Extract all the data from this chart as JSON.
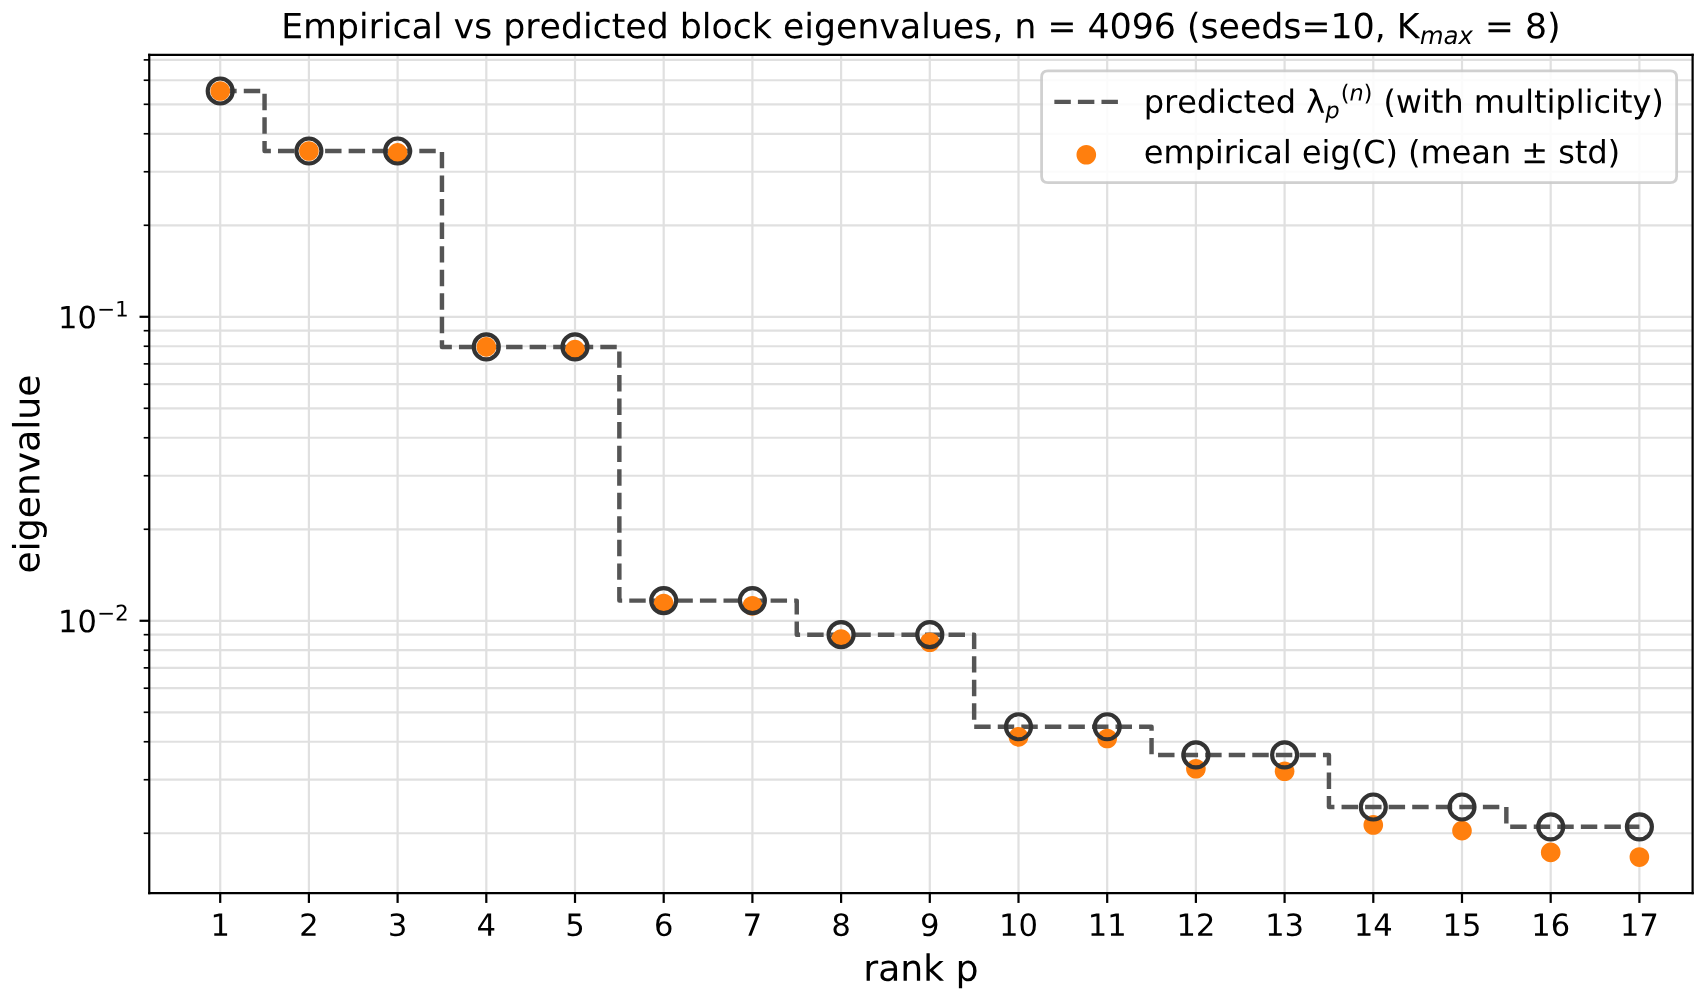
{
  "chart_data": {
    "type": "step",
    "title": "Empirical vs predicted block eigenvalues, n = 4096 (seeds=10, K$_{max}$ = 8)",
    "xlabel": "rank p",
    "ylabel": "eigenvalue",
    "x": [
      1,
      2,
      3,
      4,
      5,
      6,
      7,
      8,
      9,
      10,
      11,
      12,
      13,
      14,
      15,
      16,
      17
    ],
    "series": [
      {
        "name": "predicted λ$_{p}$$^{(n)}$ (with multiplicity)",
        "color": "#555555",
        "line_style": "dashed",
        "marker": "circle",
        "values": [
          0.553,
          0.351,
          0.351,
          0.0796,
          0.0796,
          0.01165,
          0.01165,
          0.009,
          0.009,
          0.00448,
          0.00448,
          0.00362,
          0.00362,
          0.00244,
          0.00244,
          0.0021,
          0.0021
        ]
      },
      {
        "name": "empirical eig(C) (mean ± std)",
        "type": "scatter",
        "color": "#ff7f0e",
        "marker": "circle",
        "values": [
          0.553,
          0.351,
          0.346,
          0.0796,
          0.078,
          0.0114,
          0.0112,
          0.0087,
          0.0085,
          0.00415,
          0.0041,
          0.00326,
          0.0032,
          0.00213,
          0.00204,
          0.00173,
          0.00167
        ]
      }
    ],
    "log": "y",
    "xlim": [
      0.2,
      17.6
    ],
    "ylim": [
      0.00127,
      0.727
    ],
    "xticks": [
      1,
      2,
      3,
      4,
      5,
      6,
      7,
      8,
      9,
      10,
      11,
      12,
      13,
      14,
      15,
      16,
      17
    ],
    "yticks": [
      {
        "value": 0.01,
        "label": "10$^{−2}$"
      },
      {
        "value": 0.1,
        "label": "10$^{−1}$"
      }
    ],
    "grid": true,
    "legend": "top right"
  }
}
